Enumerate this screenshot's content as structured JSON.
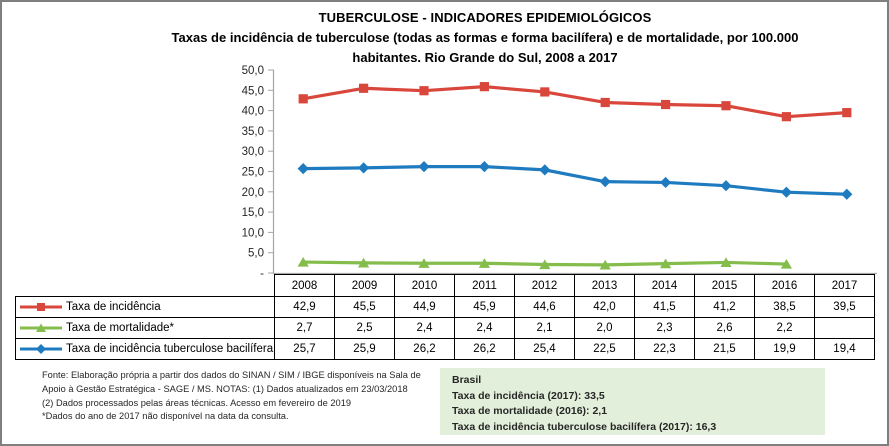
{
  "title": {
    "line1": "TUBERCULOSE - INDICADORES EPIDEMIOLÓGICOS",
    "line2": "Taxas de incidência de tuberculose (todas as formas e forma bacilífera) e de mortalidade,  por 100.000",
    "line3": "habitantes. Rio Grande do Sul, 2008 a 2017"
  },
  "chart_data": {
    "type": "line",
    "title": "TUBERCULOSE - INDICADORES EPIDEMIOLÓGICOS",
    "subtitle": "Taxas de incidência de tuberculose (todas as formas e forma bacilífera) e de mortalidade, por 100.000 habitantes. Rio Grande do Sul, 2008 a 2017",
    "categories": [
      "2008",
      "2009",
      "2010",
      "2011",
      "2012",
      "2013",
      "2014",
      "2015",
      "2016",
      "2017"
    ],
    "series": [
      {
        "name": "Taxa de incidência",
        "marker": "square",
        "color": "#d9473c",
        "values": [
          42.9,
          45.5,
          44.9,
          45.9,
          44.6,
          42.0,
          41.5,
          41.2,
          38.5,
          39.5
        ]
      },
      {
        "name": "Taxa de mortalidade*",
        "marker": "triangle",
        "color": "#84bd4c",
        "values": [
          2.7,
          2.5,
          2.4,
          2.4,
          2.1,
          2.0,
          2.3,
          2.6,
          2.2,
          null
        ]
      },
      {
        "name": "Taxa de incidência tuberculose bacilífera",
        "marker": "diamond",
        "color": "#1f7bc0",
        "values": [
          25.7,
          25.9,
          26.2,
          26.2,
          25.4,
          22.5,
          22.3,
          21.5,
          19.9,
          19.4
        ]
      }
    ],
    "ylim": [
      0,
      50
    ],
    "ytick_interval": 5,
    "ytick_labels": [
      "50,0",
      "45,0",
      "40,0",
      "35,0",
      "30,0",
      "25,0",
      "20,0",
      "15,0",
      "10,0",
      "5,0",
      "-"
    ],
    "grid": false,
    "legend_position": "data-table-left",
    "decimal_separator": ","
  },
  "source_note": {
    "lines": [
      "Fonte: Elaboração própria a partir dos dados do SINAN / SIM / IBGE  disponíveis na Sala de",
      "Apoio  à Gestão Estratégica - SAGE / MS. NOTAS: (1) Dados atualizados em 23/03/2018",
      "(2) Dados processados pelas áreas técnicas. Acesso em fevereiro de 2019",
      "*Dados do ano de 2017 não disponível na data da consulta."
    ]
  },
  "info_box": {
    "title": "Brasil",
    "lines": [
      "Taxa de incidência  (2017): 33,5",
      "Taxa de mortalidade (2016): 2,1",
      "Taxa de incidência  tuberculose bacilífera  (2017): 16,3"
    ],
    "background": "#e2efda"
  },
  "palette": {
    "axis_line": "#a6a6a6",
    "axis_text": "#262626",
    "table_border": "#000000",
    "frame_border": "#7f7f7f",
    "info_box_bg": "#e2efda"
  }
}
